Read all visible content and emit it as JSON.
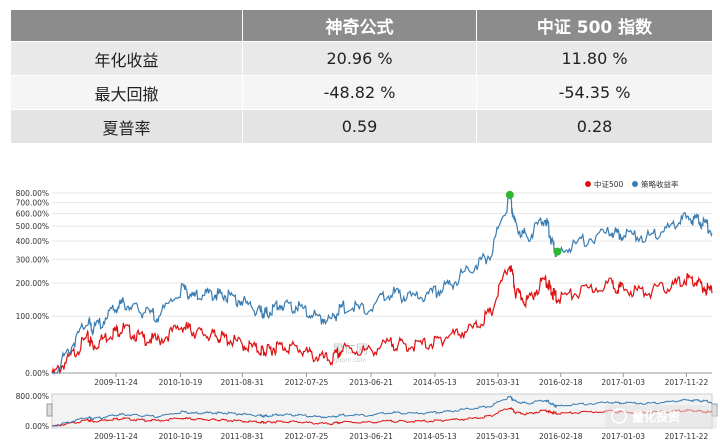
{
  "table": {
    "headers": [
      "",
      "神奇公式",
      "中证 500 指数"
    ],
    "rows": [
      {
        "label": "年化收益",
        "strategy": "20.96 %",
        "index": "11.80 %"
      },
      {
        "label": "最大回撤",
        "strategy": "-48.82 %",
        "index": "-54.35 %"
      },
      {
        "label": "夏普率",
        "strategy": "0.59",
        "index": "0.28"
      }
    ]
  },
  "chart_data": {
    "type": "line",
    "yscale": "log",
    "ylim": [
      0,
      800
    ],
    "yticks": [
      "800.00%",
      "700.00%",
      "600.00%",
      "500.00%",
      "400.00%",
      "300.00%",
      "200.00%",
      "100.00%",
      "0.00%"
    ],
    "xticks": [
      "2009-11-24",
      "2010-10-19",
      "2011-08-31",
      "2012-07-25",
      "2013-06-21",
      "2014-05-13",
      "2015-03-31",
      "2016-02-18",
      "2017-01-03",
      "2017-11-22"
    ],
    "navigator": {
      "yticks": [
        "800.00%",
        "0.00%"
      ]
    },
    "legend": {
      "position": "top-right"
    },
    "watermark": {
      "main": "果仁网",
      "sub": "guorn.com"
    },
    "brand_watermark": "量化投资",
    "colors": {
      "index": "#dd1111",
      "strategy": "#3a7cb0",
      "marker": "#2fb52f"
    },
    "series": [
      {
        "name": "中证500",
        "key": "index",
        "x": [
          "2009-01",
          "2009-04",
          "2009-07",
          "2009-08",
          "2009-11",
          "2010-01",
          "2010-04",
          "2010-07",
          "2010-11",
          "2011-01",
          "2011-04",
          "2011-06",
          "2011-09",
          "2011-12",
          "2012-01",
          "2012-03",
          "2012-06",
          "2012-09",
          "2012-12",
          "2013-02",
          "2013-06",
          "2013-10",
          "2014-01",
          "2014-05",
          "2014-08",
          "2014-12",
          "2015-03",
          "2015-06",
          "2015-07",
          "2015-09",
          "2015-12",
          "2016-01",
          "2016-02",
          "2016-06",
          "2016-11",
          "2017-01",
          "2017-05",
          "2017-09",
          "2017-12",
          "2018-02",
          "2018-04"
        ],
        "y": [
          0,
          25,
          60,
          45,
          70,
          80,
          60,
          55,
          85,
          72,
          65,
          60,
          48,
          38,
          35,
          45,
          42,
          28,
          22,
          40,
          35,
          50,
          45,
          50,
          65,
          80,
          120,
          290,
          175,
          150,
          230,
          180,
          160,
          180,
          210,
          190,
          180,
          200,
          230,
          205,
          180
        ]
      },
      {
        "name": "策略收益率",
        "key": "strategy",
        "x": [
          "2009-01",
          "2009-04",
          "2009-07",
          "2009-08",
          "2009-11",
          "2010-01",
          "2010-04",
          "2010-07",
          "2010-11",
          "2011-01",
          "2011-04",
          "2011-06",
          "2011-09",
          "2011-12",
          "2012-01",
          "2012-03",
          "2012-06",
          "2012-09",
          "2012-12",
          "2013-02",
          "2013-06",
          "2013-10",
          "2014-01",
          "2014-05",
          "2014-08",
          "2014-12",
          "2015-03",
          "2015-06",
          "2015-07",
          "2015-09",
          "2015-12",
          "2016-01",
          "2016-02",
          "2016-06",
          "2016-11",
          "2017-01",
          "2017-05",
          "2017-09",
          "2017-12",
          "2018-02",
          "2018-04"
        ],
        "y": [
          0,
          40,
          95,
          75,
          120,
          145,
          120,
          110,
          190,
          165,
          175,
          170,
          150,
          120,
          115,
          140,
          135,
          110,
          100,
          135,
          125,
          180,
          160,
          175,
          210,
          280,
          350,
          780,
          520,
          450,
          600,
          420,
          340,
          420,
          480,
          470,
          450,
          520,
          600,
          560,
          500
        ]
      }
    ],
    "markers": [
      {
        "x": "2015-06",
        "y": 780
      },
      {
        "x": "2016-02",
        "y": 340
      }
    ]
  }
}
